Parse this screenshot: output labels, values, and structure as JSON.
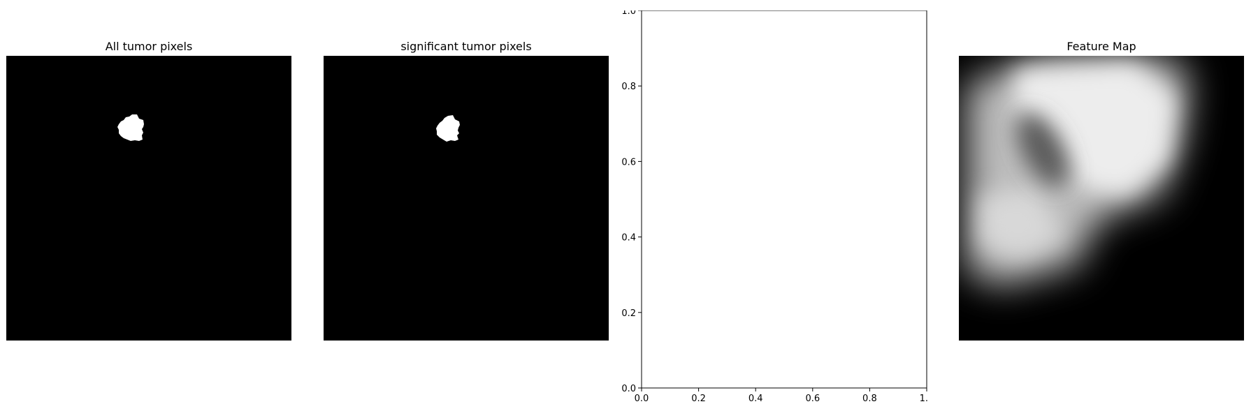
{
  "chart_data": [
    {
      "type": "heatmap",
      "title": "All tumor pixels",
      "colormap": "gray",
      "axes_visible": false,
      "content": "binary mask: single small white tumor region on black background, upper-left-center"
    },
    {
      "type": "heatmap",
      "title": "significant tumor pixels",
      "colormap": "gray",
      "axes_visible": false,
      "content": "binary mask: single small white tumor region on black background, nearly identical to first panel"
    },
    {
      "type": "line",
      "title": "",
      "xlabel": "",
      "ylabel": "",
      "xlim": [
        0.0,
        1.0
      ],
      "ylim": [
        0.0,
        1.0
      ],
      "xticks": [
        "0.0",
        "0.2",
        "0.4",
        "0.6",
        "0.8",
        "1.0"
      ],
      "yticks": [
        "0.0",
        "0.2",
        "0.4",
        "0.6",
        "0.8",
        "1.0"
      ],
      "series": [],
      "grid": false
    },
    {
      "type": "heatmap",
      "title": "Feature Map",
      "colormap": "gray",
      "axes_visible": false,
      "content": "smooth grayscale feature map: bright blob in upper-left/center with a darker elliptical region inside, black in lower-right and corners"
    }
  ]
}
